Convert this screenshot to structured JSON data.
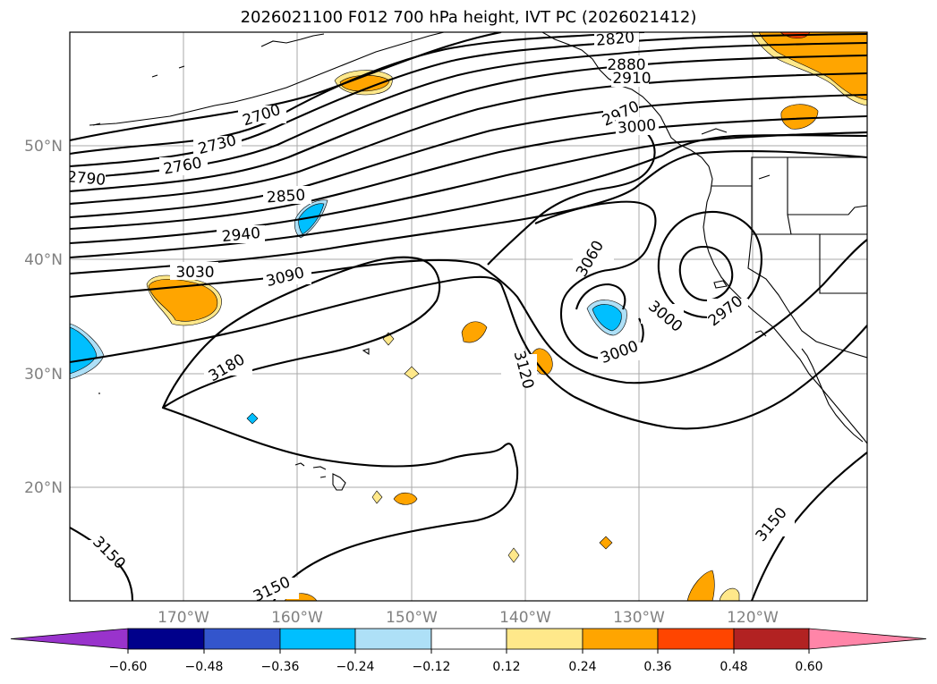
{
  "title": "2026021100 F012 700 hPa height, IVT PC (2026021412)",
  "lat_labels": [
    "50°N",
    "40°N",
    "30°N",
    "20°N"
  ],
  "lon_labels": [
    "170°W",
    "160°W",
    "150°W",
    "140°W",
    "130°W",
    "120°W"
  ],
  "contour_labels": [
    "2820",
    "2880",
    "2910",
    "2970",
    "3000",
    "2700",
    "2730",
    "2760",
    "2790",
    "2850",
    "2940",
    "3030",
    "3090",
    "3180",
    "3060",
    "3000",
    "3000",
    "2970",
    "3120",
    "3150",
    "3150",
    "3150"
  ],
  "colorbar": {
    "ticks": [
      "−0.60",
      "−0.48",
      "−0.36",
      "−0.24",
      "−0.12",
      "0.12",
      "0.24",
      "0.36",
      "0.48",
      "0.60"
    ],
    "colors": [
      "#9933cc",
      "#00008b",
      "#3355cc",
      "#00bfff",
      "#aee0f7",
      "#ffffff",
      "#ffe88a",
      "#ffa500",
      "#ff4500",
      "#b22222",
      "#ff85a8"
    ]
  },
  "colors": {
    "pos_low": "#ffe88a",
    "pos_mid": "#ffa500",
    "pos_high": "#ff4500",
    "neg_mid": "#00bfff",
    "neg_low": "#aee0f7"
  }
}
